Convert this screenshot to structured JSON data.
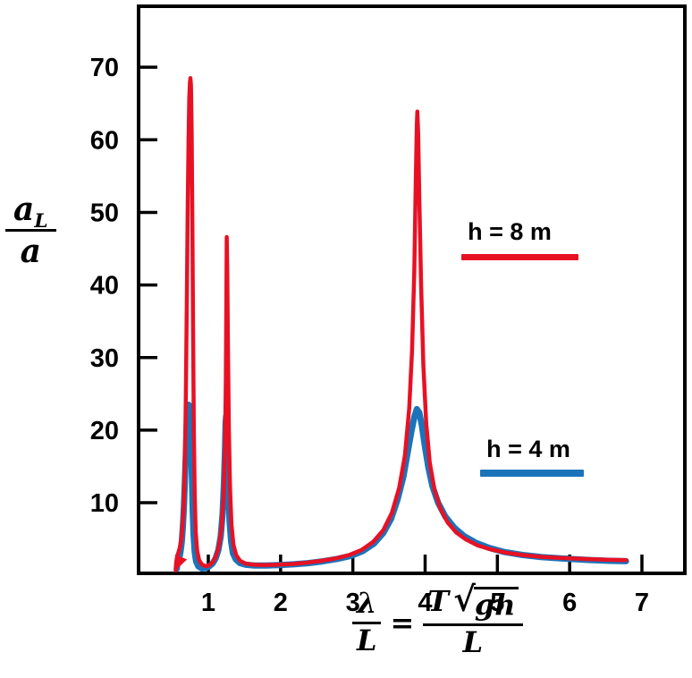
{
  "chart_data": {
    "type": "line",
    "title": "",
    "xlabel": "λ/L = T√(gh)/L",
    "ylabel": "a_L/a",
    "xlim": [
      0.035,
      7.594
    ],
    "ylim": [
      0.27,
      78.4
    ],
    "x_ticks": [
      1,
      2,
      3,
      4,
      5,
      6,
      7
    ],
    "y_ticks": [
      10,
      20,
      30,
      40,
      50,
      60,
      70
    ],
    "grid": false,
    "legend_position": "inside-right-floating",
    "series": [
      {
        "name": "h = 4 m",
        "color": "#1b74ba",
        "width": 7,
        "points": [
          [
            0.563,
            0.9
          ],
          [
            0.571,
            1.5
          ],
          [
            0.583,
            2.0
          ],
          [
            0.6,
            2.5
          ],
          [
            0.617,
            3.3
          ],
          [
            0.633,
            4.6
          ],
          [
            0.648,
            6.6
          ],
          [
            0.662,
            9.4
          ],
          [
            0.676,
            13
          ],
          [
            0.689,
            17
          ],
          [
            0.701,
            20.5
          ],
          [
            0.713,
            22.7
          ],
          [
            0.725,
            23.5
          ],
          [
            0.737,
            23.4
          ],
          [
            0.748,
            22.3
          ],
          [
            0.76,
            19
          ],
          [
            0.772,
            14
          ],
          [
            0.784,
            9
          ],
          [
            0.797,
            5.4
          ],
          [
            0.812,
            3.2
          ],
          [
            0.832,
            1.9
          ],
          [
            0.862,
            1.25
          ],
          [
            0.91,
            0.95
          ],
          [
            0.965,
            1.0
          ],
          [
            1.015,
            1.25
          ],
          [
            1.06,
            1.65
          ],
          [
            1.1,
            2.3
          ],
          [
            1.14,
            3.5
          ],
          [
            1.172,
            5.4
          ],
          [
            1.198,
            8.5
          ],
          [
            1.218,
            13
          ],
          [
            1.231,
            17.5
          ],
          [
            1.239,
            20.8
          ],
          [
            1.246,
            21.9
          ],
          [
            1.255,
            20.5
          ],
          [
            1.266,
            16.5
          ],
          [
            1.279,
            11.5
          ],
          [
            1.295,
            7.4
          ],
          [
            1.315,
            4.7
          ],
          [
            1.342,
            3.0
          ],
          [
            1.38,
            2.2
          ],
          [
            1.435,
            1.7
          ],
          [
            1.52,
            1.45
          ],
          [
            1.64,
            1.35
          ],
          [
            1.8,
            1.35
          ],
          [
            1.98,
            1.42
          ],
          [
            2.18,
            1.52
          ],
          [
            2.38,
            1.68
          ],
          [
            2.58,
            1.92
          ],
          [
            2.78,
            2.25
          ],
          [
            2.98,
            2.7
          ],
          [
            3.14,
            3.35
          ],
          [
            3.29,
            4.35
          ],
          [
            3.42,
            5.8
          ],
          [
            3.53,
            7.8
          ],
          [
            3.62,
            10.5
          ],
          [
            3.7,
            13.6
          ],
          [
            3.76,
            17
          ],
          [
            3.81,
            19.8
          ],
          [
            3.85,
            21.8
          ],
          [
            3.885,
            22.9
          ],
          [
            3.92,
            22.4
          ],
          [
            3.955,
            20.6
          ],
          [
            3.995,
            17.9
          ],
          [
            4.045,
            14.9
          ],
          [
            4.1,
            12.3
          ],
          [
            4.18,
            10
          ],
          [
            4.28,
            8.1
          ],
          [
            4.4,
            6.6
          ],
          [
            4.54,
            5.4
          ],
          [
            4.7,
            4.5
          ],
          [
            4.88,
            3.8
          ],
          [
            5.1,
            3.2
          ],
          [
            5.35,
            2.8
          ],
          [
            5.62,
            2.5
          ],
          [
            5.92,
            2.3
          ],
          [
            6.25,
            2.12
          ],
          [
            6.55,
            2.0
          ],
          [
            6.78,
            1.95
          ]
        ]
      },
      {
        "name": "h = 8 m",
        "color": "#e81124",
        "width": 4.5,
        "points": [
          [
            0.549,
            0.7
          ],
          [
            0.556,
            1.8
          ],
          [
            0.568,
            2.6
          ],
          [
            0.588,
            3.2
          ],
          [
            0.61,
            4.0
          ],
          [
            0.63,
            5.2
          ],
          [
            0.648,
            7.4
          ],
          [
            0.663,
            10.5
          ],
          [
            0.677,
            16
          ],
          [
            0.69,
            25
          ],
          [
            0.702,
            37
          ],
          [
            0.714,
            50
          ],
          [
            0.726,
            60
          ],
          [
            0.737,
            65.8
          ],
          [
            0.746,
            68.0
          ],
          [
            0.753,
            68.5
          ],
          [
            0.76,
            67.5
          ],
          [
            0.77,
            61
          ],
          [
            0.78,
            48
          ],
          [
            0.79,
            33
          ],
          [
            0.8,
            20
          ],
          [
            0.812,
            11
          ],
          [
            0.826,
            6
          ],
          [
            0.845,
            3.4
          ],
          [
            0.872,
            2.1
          ],
          [
            0.91,
            1.5
          ],
          [
            0.96,
            1.25
          ],
          [
            1.01,
            1.35
          ],
          [
            1.06,
            1.8
          ],
          [
            1.105,
            2.6
          ],
          [
            1.147,
            4.0
          ],
          [
            1.182,
            6.5
          ],
          [
            1.21,
            10.5
          ],
          [
            1.23,
            17
          ],
          [
            1.243,
            27
          ],
          [
            1.25,
            38
          ],
          [
            1.255,
            46.6
          ],
          [
            1.262,
            42
          ],
          [
            1.272,
            31
          ],
          [
            1.285,
            20
          ],
          [
            1.3,
            12
          ],
          [
            1.32,
            7
          ],
          [
            1.347,
            4.2
          ],
          [
            1.385,
            2.8
          ],
          [
            1.44,
            2.0
          ],
          [
            1.52,
            1.6
          ],
          [
            1.63,
            1.45
          ],
          [
            1.78,
            1.4
          ],
          [
            1.95,
            1.45
          ],
          [
            2.15,
            1.55
          ],
          [
            2.35,
            1.72
          ],
          [
            2.55,
            1.98
          ],
          [
            2.75,
            2.3
          ],
          [
            2.95,
            2.8
          ],
          [
            3.12,
            3.5
          ],
          [
            3.28,
            4.6
          ],
          [
            3.42,
            6.2
          ],
          [
            3.54,
            8.6
          ],
          [
            3.64,
            12
          ],
          [
            3.72,
            16.5
          ],
          [
            3.78,
            23
          ],
          [
            3.82,
            31
          ],
          [
            3.85,
            42
          ],
          [
            3.87,
            54
          ],
          [
            3.885,
            62
          ],
          [
            3.893,
            63.9
          ],
          [
            3.903,
            61
          ],
          [
            3.92,
            52
          ],
          [
            3.945,
            40
          ],
          [
            3.975,
            29
          ],
          [
            4.015,
            21
          ],
          [
            4.065,
            15.5
          ],
          [
            4.13,
            11.8
          ],
          [
            4.21,
            9.2
          ],
          [
            4.31,
            7.3
          ],
          [
            4.43,
            5.9
          ],
          [
            4.57,
            4.9
          ],
          [
            4.73,
            4.1
          ],
          [
            4.9,
            3.6
          ],
          [
            5.1,
            3.15
          ],
          [
            5.35,
            2.8
          ],
          [
            5.6,
            2.55
          ],
          [
            5.9,
            2.38
          ],
          [
            6.2,
            2.25
          ],
          [
            6.5,
            2.15
          ],
          [
            6.78,
            2.1
          ]
        ]
      }
    ],
    "arrow": {
      "x": 0.549,
      "y": 0.7,
      "angle_deg": 112,
      "size": 16,
      "color": "#e81124"
    }
  },
  "legend": {
    "h8_label": "h = 8 m",
    "h4_label": "h = 4 m"
  },
  "ylabel_parts": {
    "numerator": "a",
    "numerator_sub": "L",
    "denominator": "a"
  },
  "xlabel_parts": {
    "lhs_num": "λ",
    "lhs_den": "L",
    "equals": "=",
    "rhs_T": "T",
    "radical": "√",
    "radicand": "gh",
    "rhs_den": "L"
  },
  "colors": {
    "axis": "#000000",
    "red_series": "#e81124",
    "blue_series": "#1b74ba"
  }
}
